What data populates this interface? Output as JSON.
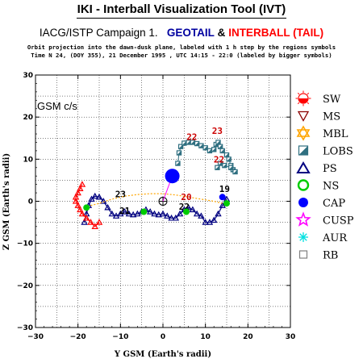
{
  "header": {
    "title": "IKI - Interball Visualization Tool (IVT)",
    "campaign_prefix": "IACG/ISTP Campaign 1.",
    "geotail": "GEOTAIL",
    "amp": "&",
    "interball": "INTERBALL (TAIL)",
    "line1": "Orbit projection into the dawn-dusk plane, labeled with 1 h step by the regions symbols",
    "line2": "Time N 24, (DOY 355), 21 December 1995 ,  UTC 14:15 - 22:0 (labeled by bigger symbols)"
  },
  "chart_data": {
    "type": "scatter",
    "xlabel": "Y GSM (Earth's radii)",
    "ylabel": "Z GSM (Earth's radii)",
    "frame_label": "GSM c/s",
    "xlim": [
      -30,
      30
    ],
    "ylim": [
      -30,
      30
    ],
    "xticks": [
      -30,
      -20,
      -10,
      0,
      10,
      20,
      30
    ],
    "yticks": [
      -30,
      -20,
      -10,
      0,
      10,
      20,
      30
    ],
    "grid": true,
    "grid_step": 5,
    "legend_position": "right",
    "colors": {
      "geotail": "#000080",
      "interball": "#ff0000",
      "grid": "#000000"
    },
    "legend": [
      {
        "label": "SW",
        "icon": "half-filled-circle-with-rays",
        "color": "#ff0000"
      },
      {
        "label": "MS",
        "icon": "inverted-triangle",
        "color": "#8b0000"
      },
      {
        "label": "MBL",
        "icon": "star-of-david",
        "color": "#ffa500"
      },
      {
        "label": "LOBS",
        "icon": "half-filled-square",
        "color": "#2f6f80"
      },
      {
        "label": "PS",
        "icon": "triangle",
        "color": "#000080"
      },
      {
        "label": "NS",
        "icon": "circle",
        "color": "#00cc00"
      },
      {
        "label": "CAP",
        "icon": "filled-circle",
        "color": "#0000ff"
      },
      {
        "label": "CUSP",
        "icon": "star",
        "color": "#ff00ff"
      },
      {
        "label": "AUR",
        "icon": "asterisk",
        "color": "#00e0e0"
      },
      {
        "label": "RB",
        "icon": "square",
        "color": "#808080"
      }
    ],
    "series": [
      {
        "name": "GEOTAIL",
        "type": "line",
        "color": "#000080",
        "x": [
          -18.5,
          -18,
          -17.5,
          -16.8,
          -16,
          -15,
          -14,
          -13,
          -12,
          -11,
          -10,
          -9,
          -8,
          -7,
          -6,
          -5,
          -4,
          -3,
          -2,
          -1,
          0,
          1,
          2,
          3,
          4,
          5,
          6,
          7,
          8,
          9,
          10,
          11,
          12,
          13,
          14,
          15
        ],
        "y": [
          -5,
          -3,
          -1,
          0.5,
          1.2,
          1,
          0,
          -1.5,
          -3,
          -3.5,
          -3,
          -2.5,
          -3,
          -3.2,
          -3,
          -2.5,
          -2,
          -2.5,
          -3,
          -3.2,
          -3,
          -3.5,
          -4,
          -4,
          -3,
          -2,
          -1.5,
          -2,
          -3,
          -3.5,
          -5,
          -5,
          -4.5,
          -3,
          -1,
          0.5
        ],
        "labels": [
          {
            "text": "21",
            "x": -9,
            "y": -3
          },
          {
            "text": "23",
            "x": -10,
            "y": 1
          },
          {
            "text": "22",
            "x": 5,
            "y": -2
          },
          {
            "text": "19",
            "x": 14.5,
            "y": 2.2
          }
        ]
      },
      {
        "name": "INTERBALL (TAIL)",
        "type": "line",
        "color": "#ff0000",
        "x": [
          -19,
          -19.5,
          -20,
          -20.5,
          -20.5,
          -20,
          -19.5,
          -19,
          -18,
          -17,
          -16,
          -15
        ],
        "y": [
          4,
          3,
          2,
          1,
          0,
          -1,
          -2,
          -3,
          -4,
          -5,
          -6,
          -5
        ],
        "labels": []
      },
      {
        "name": "MS dashed arc",
        "type": "dashed",
        "color": "#ffa500",
        "x": [
          -17,
          -15,
          -12,
          -9,
          -6,
          -3,
          0,
          3,
          6,
          9,
          12,
          14
        ],
        "y": [
          -1,
          -0.5,
          0.5,
          1.2,
          1.6,
          1.8,
          1.8,
          1.5,
          1,
          0.5,
          0,
          -0.5
        ],
        "labels": []
      },
      {
        "name": "LOBS track",
        "type": "markers",
        "color": "#2f6f80",
        "x": [
          3.5,
          3.8,
          4.2,
          5,
          6,
          7,
          8,
          9,
          10,
          11,
          12,
          12.5,
          13,
          13.5,
          14,
          15,
          15.5,
          16,
          16.5,
          17,
          16,
          14.5,
          13.5,
          12.8
        ],
        "y": [
          9,
          11.5,
          13,
          13.8,
          14,
          14,
          13.7,
          13.2,
          12.7,
          12,
          12.3,
          13.5,
          14,
          13,
          12,
          11,
          10,
          8.5,
          7.5,
          7,
          8,
          8.5,
          9,
          8
        ],
        "labels": [
          {
            "text": "22",
            "x": 6.8,
            "y": 14.6
          },
          {
            "text": "23",
            "x": 12.8,
            "y": 16
          },
          {
            "text": "22",
            "x": 13.2,
            "y": 9.2
          }
        ]
      },
      {
        "name": "CAP",
        "type": "points",
        "color": "#0000ff",
        "x": [
          2.2,
          14
        ],
        "y": [
          6,
          1
        ],
        "labels": []
      },
      {
        "name": "NS",
        "type": "points",
        "color": "#00cc00",
        "x": [
          -18,
          -4.5,
          5.5,
          15
        ],
        "y": [
          -1.5,
          -2.5,
          -2.5,
          -0.5
        ],
        "labels": [
          {
            "text": "20",
            "x": 5.5,
            "y": 0.3
          }
        ]
      }
    ]
  }
}
